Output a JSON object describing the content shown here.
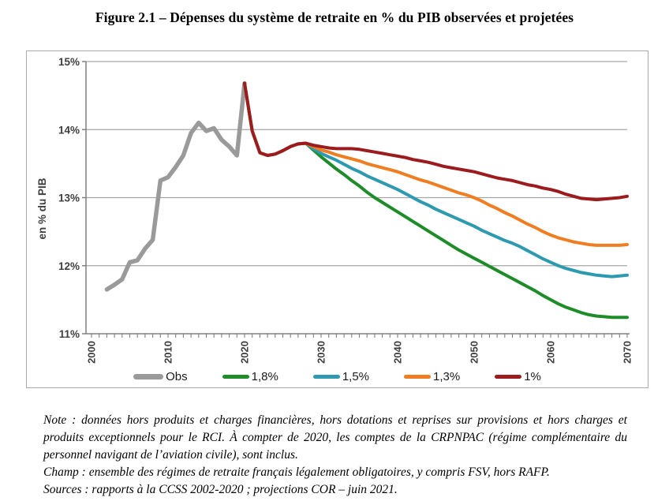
{
  "title": "Figure 2.1 – Dépenses du système de retraite en % du PIB observées et projetées",
  "notes": {
    "note": "Note : données hors produits et charges financières, hors dotations et reprises sur provisions et hors charges et produits exceptionnels pour le RCI. À compter de 2020, les comptes de la CRPNPAC (régime complémentaire du personnel navigant de l’aviation civile), sont inclus.",
    "champ": "Champ : ensemble des régimes de retraite français légalement obligatoires, y compris FSV, hors RAFP.",
    "sources": "Sources : rapports à la CCSS 2002-2020 ; projections COR – juin 2021."
  },
  "chart_data": {
    "type": "line",
    "title": "Figure 2.1 – Dépenses du système de retraite en % du PIB observées et projetées",
    "xlabel": "",
    "ylabel": "en % du PIB",
    "x_axis": {
      "min": 2000,
      "max": 2070,
      "labeled_tick_step": 10,
      "minor_tick_step": 1,
      "tick_labels": [
        "2000",
        "2010",
        "2020",
        "2030",
        "2040",
        "2050",
        "2060",
        "2070"
      ]
    },
    "y_axis": {
      "min": 11,
      "max": 15,
      "tick_step": 1,
      "tick_labels": [
        "11%",
        "12%",
        "13%",
        "14%",
        "15%"
      ]
    },
    "grid": "horizontal",
    "legend_position": "bottom",
    "colors": {
      "obs": "#9a9a9a",
      "s18": "#1e8c28",
      "s15": "#2e9ab0",
      "s13": "#ef7d22",
      "s10": "#9b1b1e",
      "gridline": "#a6a6a6",
      "axis": "#808080",
      "tick_label": "#3f3f3f",
      "box_border": "#ababab"
    },
    "series": [
      {
        "name": "Obs",
        "color": "#9a9a9a",
        "stroke_width": 5.5,
        "points": [
          [
            2002,
            11.65
          ],
          [
            2003,
            11.72
          ],
          [
            2004,
            11.8
          ],
          [
            2005,
            12.05
          ],
          [
            2006,
            12.08
          ],
          [
            2007,
            12.25
          ],
          [
            2008,
            12.38
          ],
          [
            2009,
            13.25
          ],
          [
            2010,
            13.3
          ],
          [
            2011,
            13.45
          ],
          [
            2012,
            13.62
          ],
          [
            2013,
            13.95
          ],
          [
            2014,
            14.1
          ],
          [
            2015,
            13.98
          ],
          [
            2016,
            14.02
          ],
          [
            2017,
            13.85
          ],
          [
            2018,
            13.75
          ],
          [
            2019,
            13.62
          ],
          [
            2020,
            14.68
          ]
        ]
      },
      {
        "name": "1,8%",
        "color": "#1e8c28",
        "stroke_width": 4,
        "points": [
          [
            2020,
            14.68
          ],
          [
            2021,
            13.98
          ],
          [
            2022,
            13.66
          ],
          [
            2023,
            13.62
          ],
          [
            2024,
            13.64
          ],
          [
            2025,
            13.69
          ],
          [
            2026,
            13.75
          ],
          [
            2027,
            13.79
          ],
          [
            2028,
            13.8
          ],
          [
            2029,
            13.7
          ],
          [
            2030,
            13.6
          ],
          [
            2031,
            13.51
          ],
          [
            2032,
            13.42
          ],
          [
            2033,
            13.34
          ],
          [
            2034,
            13.25
          ],
          [
            2035,
            13.17
          ],
          [
            2036,
            13.08
          ],
          [
            2037,
            13.0
          ],
          [
            2038,
            12.93
          ],
          [
            2039,
            12.86
          ],
          [
            2040,
            12.79
          ],
          [
            2041,
            12.72
          ],
          [
            2042,
            12.65
          ],
          [
            2043,
            12.58
          ],
          [
            2044,
            12.51
          ],
          [
            2045,
            12.44
          ],
          [
            2046,
            12.37
          ],
          [
            2047,
            12.3
          ],
          [
            2048,
            12.23
          ],
          [
            2049,
            12.17
          ],
          [
            2050,
            12.11
          ],
          [
            2051,
            12.05
          ],
          [
            2052,
            11.99
          ],
          [
            2053,
            11.93
          ],
          [
            2054,
            11.87
          ],
          [
            2055,
            11.81
          ],
          [
            2056,
            11.75
          ],
          [
            2057,
            11.69
          ],
          [
            2058,
            11.63
          ],
          [
            2059,
            11.56
          ],
          [
            2060,
            11.5
          ],
          [
            2061,
            11.44
          ],
          [
            2062,
            11.39
          ],
          [
            2063,
            11.35
          ],
          [
            2064,
            11.31
          ],
          [
            2065,
            11.28
          ],
          [
            2066,
            11.26
          ],
          [
            2067,
            11.25
          ],
          [
            2068,
            11.24
          ],
          [
            2069,
            11.24
          ],
          [
            2070,
            11.24
          ]
        ]
      },
      {
        "name": "1,5%",
        "color": "#2e9ab0",
        "stroke_width": 4,
        "points": [
          [
            2020,
            14.68
          ],
          [
            2021,
            13.98
          ],
          [
            2022,
            13.66
          ],
          [
            2023,
            13.62
          ],
          [
            2024,
            13.64
          ],
          [
            2025,
            13.69
          ],
          [
            2026,
            13.75
          ],
          [
            2027,
            13.79
          ],
          [
            2028,
            13.8
          ],
          [
            2029,
            13.72
          ],
          [
            2030,
            13.65
          ],
          [
            2031,
            13.6
          ],
          [
            2032,
            13.55
          ],
          [
            2033,
            13.49
          ],
          [
            2034,
            13.43
          ],
          [
            2035,
            13.38
          ],
          [
            2036,
            13.32
          ],
          [
            2037,
            13.27
          ],
          [
            2038,
            13.22
          ],
          [
            2039,
            13.17
          ],
          [
            2040,
            13.12
          ],
          [
            2041,
            13.06
          ],
          [
            2042,
            13.0
          ],
          [
            2043,
            12.94
          ],
          [
            2044,
            12.89
          ],
          [
            2045,
            12.83
          ],
          [
            2046,
            12.78
          ],
          [
            2047,
            12.73
          ],
          [
            2048,
            12.68
          ],
          [
            2049,
            12.63
          ],
          [
            2050,
            12.58
          ],
          [
            2051,
            12.52
          ],
          [
            2052,
            12.47
          ],
          [
            2053,
            12.42
          ],
          [
            2054,
            12.37
          ],
          [
            2055,
            12.33
          ],
          [
            2056,
            12.28
          ],
          [
            2057,
            12.22
          ],
          [
            2058,
            12.16
          ],
          [
            2059,
            12.1
          ],
          [
            2060,
            12.05
          ],
          [
            2061,
            12.0
          ],
          [
            2062,
            11.96
          ],
          [
            2063,
            11.93
          ],
          [
            2064,
            11.9
          ],
          [
            2065,
            11.88
          ],
          [
            2066,
            11.86
          ],
          [
            2067,
            11.85
          ],
          [
            2068,
            11.84
          ],
          [
            2069,
            11.85
          ],
          [
            2070,
            11.86
          ]
        ]
      },
      {
        "name": "1,3%",
        "color": "#ef7d22",
        "stroke_width": 4,
        "points": [
          [
            2020,
            14.68
          ],
          [
            2021,
            13.98
          ],
          [
            2022,
            13.66
          ],
          [
            2023,
            13.62
          ],
          [
            2024,
            13.64
          ],
          [
            2025,
            13.69
          ],
          [
            2026,
            13.75
          ],
          [
            2027,
            13.79
          ],
          [
            2028,
            13.8
          ],
          [
            2029,
            13.75
          ],
          [
            2030,
            13.7
          ],
          [
            2031,
            13.67
          ],
          [
            2032,
            13.63
          ],
          [
            2033,
            13.6
          ],
          [
            2034,
            13.57
          ],
          [
            2035,
            13.54
          ],
          [
            2036,
            13.5
          ],
          [
            2037,
            13.47
          ],
          [
            2038,
            13.44
          ],
          [
            2039,
            13.41
          ],
          [
            2040,
            13.38
          ],
          [
            2041,
            13.34
          ],
          [
            2042,
            13.3
          ],
          [
            2043,
            13.26
          ],
          [
            2044,
            13.23
          ],
          [
            2045,
            13.19
          ],
          [
            2046,
            13.15
          ],
          [
            2047,
            13.11
          ],
          [
            2048,
            13.07
          ],
          [
            2049,
            13.04
          ],
          [
            2050,
            13.0
          ],
          [
            2051,
            12.95
          ],
          [
            2052,
            12.89
          ],
          [
            2053,
            12.84
          ],
          [
            2054,
            12.78
          ],
          [
            2055,
            12.73
          ],
          [
            2056,
            12.67
          ],
          [
            2057,
            12.61
          ],
          [
            2058,
            12.56
          ],
          [
            2059,
            12.5
          ],
          [
            2060,
            12.45
          ],
          [
            2061,
            12.41
          ],
          [
            2062,
            12.38
          ],
          [
            2063,
            12.35
          ],
          [
            2064,
            12.33
          ],
          [
            2065,
            12.31
          ],
          [
            2066,
            12.3
          ],
          [
            2067,
            12.3
          ],
          [
            2068,
            12.3
          ],
          [
            2069,
            12.3
          ],
          [
            2070,
            12.31
          ]
        ]
      },
      {
        "name": "1%",
        "color": "#9b1b1e",
        "stroke_width": 4,
        "points": [
          [
            2020,
            14.68
          ],
          [
            2021,
            13.98
          ],
          [
            2022,
            13.66
          ],
          [
            2023,
            13.62
          ],
          [
            2024,
            13.64
          ],
          [
            2025,
            13.69
          ],
          [
            2026,
            13.75
          ],
          [
            2027,
            13.79
          ],
          [
            2028,
            13.8
          ],
          [
            2029,
            13.77
          ],
          [
            2030,
            13.75
          ],
          [
            2031,
            13.73
          ],
          [
            2032,
            13.72
          ],
          [
            2033,
            13.72
          ],
          [
            2034,
            13.72
          ],
          [
            2035,
            13.71
          ],
          [
            2036,
            13.69
          ],
          [
            2037,
            13.67
          ],
          [
            2038,
            13.65
          ],
          [
            2039,
            13.63
          ],
          [
            2040,
            13.61
          ],
          [
            2041,
            13.59
          ],
          [
            2042,
            13.56
          ],
          [
            2043,
            13.54
          ],
          [
            2044,
            13.52
          ],
          [
            2045,
            13.49
          ],
          [
            2046,
            13.46
          ],
          [
            2047,
            13.44
          ],
          [
            2048,
            13.42
          ],
          [
            2049,
            13.4
          ],
          [
            2050,
            13.38
          ],
          [
            2051,
            13.35
          ],
          [
            2052,
            13.32
          ],
          [
            2053,
            13.29
          ],
          [
            2054,
            13.27
          ],
          [
            2055,
            13.25
          ],
          [
            2056,
            13.22
          ],
          [
            2057,
            13.19
          ],
          [
            2058,
            13.17
          ],
          [
            2059,
            13.14
          ],
          [
            2060,
            13.12
          ],
          [
            2061,
            13.09
          ],
          [
            2062,
            13.05
          ],
          [
            2063,
            13.02
          ],
          [
            2064,
            12.99
          ],
          [
            2065,
            12.98
          ],
          [
            2066,
            12.97
          ],
          [
            2067,
            12.98
          ],
          [
            2068,
            12.99
          ],
          [
            2069,
            13.0
          ],
          [
            2070,
            13.02
          ]
        ]
      }
    ]
  }
}
